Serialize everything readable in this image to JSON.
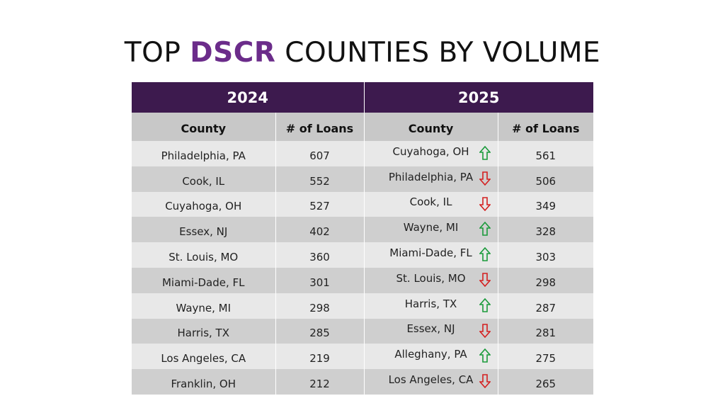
{
  "title": {
    "prefix": "TOP ",
    "accent": "DSCR",
    "suffix": " COUNTIES BY VOLUME"
  },
  "colors": {
    "accent": "#6b2c8a",
    "header_bg": "#3d1a4e",
    "up": "#1a9a3a",
    "down": "#d42020"
  },
  "years": [
    "2024",
    "2025"
  ],
  "columns": {
    "county": "County",
    "loans": "# of Loans"
  },
  "rows": [
    {
      "county_2024": "Philadelphia, PA",
      "loans_2024": "607",
      "county_2025": "Cuyahoga, OH",
      "trend": "up",
      "loans_2025": "561"
    },
    {
      "county_2024": "Cook, IL",
      "loans_2024": "552",
      "county_2025": "Philadelphia, PA",
      "trend": "down",
      "loans_2025": "506"
    },
    {
      "county_2024": "Cuyahoga, OH",
      "loans_2024": "527",
      "county_2025": "Cook, IL",
      "trend": "down",
      "loans_2025": "349"
    },
    {
      "county_2024": "Essex, NJ",
      "loans_2024": "402",
      "county_2025": "Wayne, MI",
      "trend": "up",
      "loans_2025": "328"
    },
    {
      "county_2024": "St. Louis, MO",
      "loans_2024": "360",
      "county_2025": "Miami-Dade, FL",
      "trend": "up",
      "loans_2025": "303"
    },
    {
      "county_2024": "Miami-Dade, FL",
      "loans_2024": "301",
      "county_2025": "St. Louis, MO",
      "trend": "down",
      "loans_2025": "298"
    },
    {
      "county_2024": "Wayne, MI",
      "loans_2024": "298",
      "county_2025": "Harris, TX",
      "trend": "up",
      "loans_2025": "287"
    },
    {
      "county_2024": "Harris, TX",
      "loans_2024": "285",
      "county_2025": "Essex, NJ",
      "trend": "down",
      "loans_2025": "281"
    },
    {
      "county_2024": "Los Angeles, CA",
      "loans_2024": "219",
      "county_2025": "Alleghany, PA",
      "trend": "up",
      "loans_2025": "275"
    },
    {
      "county_2024": "Franklin, OH",
      "loans_2024": "212",
      "county_2025": "Los Angeles, CA",
      "trend": "down",
      "loans_2025": "265"
    }
  ]
}
